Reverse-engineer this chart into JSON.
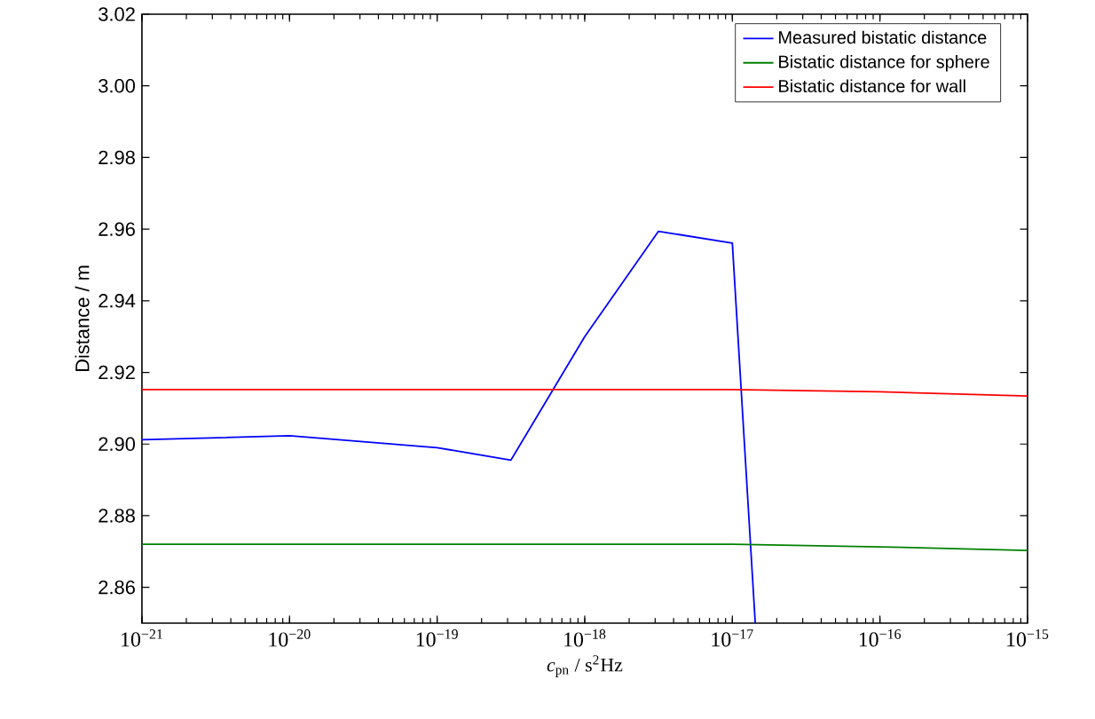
{
  "chart_data": {
    "type": "line",
    "xlabel": "*c*$_{pn}$ / s$^{2}$Hz",
    "ylabel": "Distance / m",
    "log": "x",
    "xlim": [
      1e-21,
      1e-15
    ],
    "ylim": [
      2.85,
      3.02
    ],
    "xticks": [
      {
        "value": 1e-21,
        "label": "10$^{−21}$"
      },
      {
        "value": 1e-20,
        "label": "10$^{−20}$"
      },
      {
        "value": 1e-19,
        "label": "10$^{−19}$"
      },
      {
        "value": 1e-18,
        "label": "10$^{−18}$"
      },
      {
        "value": 1e-17,
        "label": "10$^{−17}$"
      },
      {
        "value": 1e-16,
        "label": "10$^{−16}$"
      },
      {
        "value": 1e-15,
        "label": "10$^{−15}$"
      }
    ],
    "yticks": [
      {
        "value": 2.86,
        "label": "2.86"
      },
      {
        "value": 2.88,
        "label": "2.88"
      },
      {
        "value": 2.9,
        "label": "2.90"
      },
      {
        "value": 2.92,
        "label": "2.92"
      },
      {
        "value": 2.94,
        "label": "2.94"
      },
      {
        "value": 2.96,
        "label": "2.96"
      },
      {
        "value": 2.98,
        "label": "2.98"
      },
      {
        "value": 3.0,
        "label": "3.00"
      },
      {
        "value": 3.02,
        "label": "3.02"
      }
    ],
    "legend": "top right",
    "grid": false,
    "series": [
      {
        "name": "Measured bistatic distance",
        "color": "#0000ff",
        "x": [
          1e-21,
          1e-20,
          1e-19,
          3.16e-19,
          1e-18,
          3.16e-18,
          1e-17,
          1.43e-17
        ],
        "values": [
          2.9012,
          2.9023,
          2.899,
          2.8955,
          2.93,
          2.9594,
          2.9561,
          2.85
        ]
      },
      {
        "name": "Bistatic distance for sphere",
        "color": "#008000",
        "x": [
          1e-21,
          1e-20,
          1e-19,
          1e-18,
          1e-17,
          1e-16,
          1e-15
        ],
        "values": [
          2.872,
          2.872,
          2.872,
          2.872,
          2.872,
          2.8713,
          2.8703
        ]
      },
      {
        "name": "Bistatic distance for wall",
        "color": "#ff0000",
        "x": [
          1e-21,
          1e-20,
          1e-19,
          1e-18,
          1e-17,
          1e-16,
          1e-15
        ],
        "values": [
          2.9152,
          2.9152,
          2.9152,
          2.9152,
          2.9152,
          2.9146,
          2.9134
        ]
      }
    ]
  }
}
